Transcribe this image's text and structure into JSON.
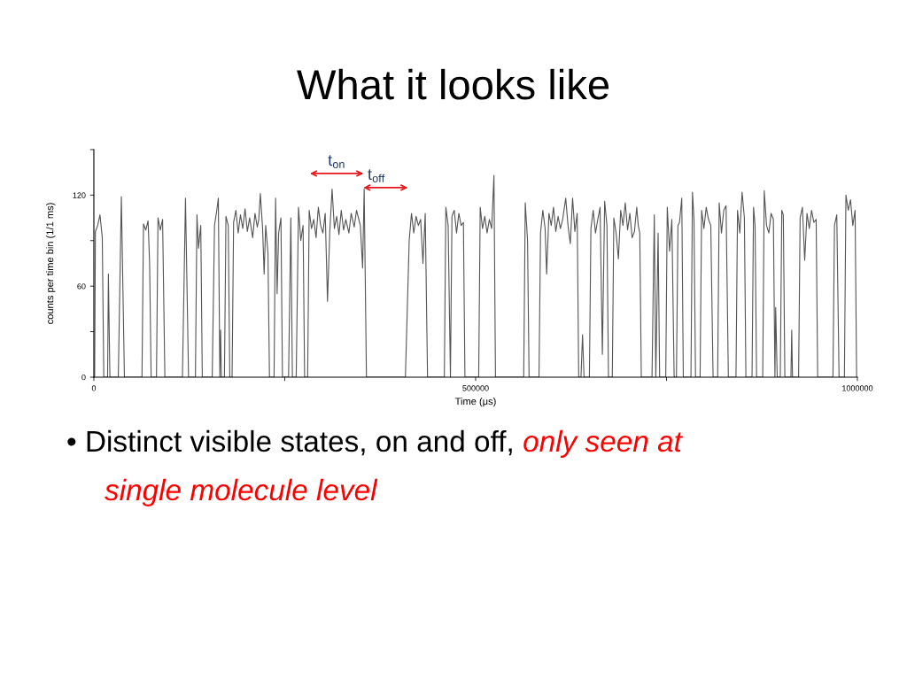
{
  "chart_data": {
    "type": "line",
    "title": "What it looks like",
    "xlabel": "Time (μs)",
    "ylabel": "counts per time bin (1/1 ms)",
    "xlim": [
      0,
      1000000
    ],
    "ylim": [
      0,
      150
    ],
    "xticks": [
      0,
      {
        "value": 250000,
        "label": null
      },
      500000,
      {
        "value": 750000,
        "label": null
      },
      1000000
    ],
    "yticks": [
      0,
      {
        "value": 30,
        "label": null
      },
      60,
      {
        "value": 90,
        "label": null
      },
      120,
      {
        "value": 150,
        "label": null
      }
    ],
    "grid": false,
    "legend": false,
    "marker": "none",
    "line_style": "solid",
    "annotations": [
      "t$_{on}$",
      "t$_{off}$",
      "• Distinct visible states, on and off,",
      "only seen at",
      "single molecule level"
    ],
    "series": [
      {
        "color": "#555555",
        "x": [
          1000,
          2000,
          5000,
          8000,
          11000,
          13000,
          18000,
          19000,
          21000,
          32000,
          36000,
          40000,
          63000,
          65000,
          68000,
          71000,
          73000,
          75000,
          82000,
          84000,
          87000,
          90000,
          93000,
          116000,
          120000,
          124000,
          133000,
          135000,
          137000,
          140000,
          142000,
          155000,
          158000,
          161000,
          163000,
          165000,
          166000,
          167000,
          171000,
          173000,
          176000,
          178000,
          181000,
          183000,
          186000,
          189000,
          192000,
          195000,
          198000,
          201000,
          204000,
          208000,
          211000,
          214000,
          216000,
          218000,
          221000,
          223000,
          225000,
          228000,
          230000,
          236000,
          238000,
          240000,
          242000,
          245000,
          247000,
          255000,
          258000,
          260000,
          265000,
          268000,
          271000,
          274000,
          276000,
          280000,
          282000,
          285000,
          288000,
          291000,
          294000,
          297000,
          300000,
          303000,
          306000,
          309000,
          312000,
          315000,
          318000,
          321000,
          324000,
          327000,
          330000,
          334000,
          337000,
          341000,
          344000,
          349000,
          352000,
          354000,
          357000,
          408000,
          413000,
          416000,
          419000,
          422000,
          425000,
          428000,
          431000,
          434000,
          437000,
          459000,
          461000,
          464000,
          467000,
          469000,
          472000,
          475000,
          478000,
          481000,
          484000,
          486000,
          504000,
          506000,
          509000,
          512000,
          515000,
          518000,
          521000,
          524000,
          526000,
          563000,
          565000,
          568000,
          570000,
          583000,
          585000,
          588000,
          591000,
          593000,
          596000,
          599000,
          602000,
          605000,
          608000,
          611000,
          614000,
          618000,
          621000,
          624000,
          627000,
          630000,
          633000,
          635000,
          638000,
          640000,
          642000,
          649000,
          651000,
          654000,
          657000,
          660000,
          663000,
          666000,
          669000,
          672000,
          674000,
          679000,
          681000,
          684000,
          687000,
          690000,
          693000,
          696000,
          699000,
          702000,
          705000,
          708000,
          711000,
          713000,
          715000,
          717000,
          731000,
          734000,
          736000,
          739000,
          741000,
          749000,
          751000,
          754000,
          757000,
          760000,
          763000,
          765000,
          767000,
          770000,
          772000,
          782000,
          784000,
          786000,
          788000,
          794000,
          796000,
          799000,
          802000,
          805000,
          808000,
          811000,
          817000,
          819000,
          822000,
          825000,
          828000,
          831000,
          841000,
          843000,
          846000,
          849000,
          852000,
          854000,
          862000,
          864000,
          866000,
          868000,
          876000,
          878000,
          881000,
          884000,
          887000,
          890000,
          892000,
          893000,
          895000,
          899000,
          901000,
          903000,
          905000,
          913000,
          914000,
          915000,
          923000,
          925000,
          928000,
          931000,
          934000,
          937000,
          940000,
          943000,
          946000,
          948000,
          968000,
          970000,
          973000,
          976000,
          983000,
          985000,
          988000,
          991000,
          994000,
          997000,
          999000
        ],
        "values": [
          0,
          96,
          100,
          107,
          92,
          0,
          0,
          68,
          0,
          0,
          119,
          0,
          0,
          101,
          97,
          103,
          75,
          0,
          0,
          105,
          97,
          104,
          0,
          0,
          118,
          0,
          0,
          107,
          85,
          100,
          0,
          0,
          100,
          110,
          118,
          0,
          31,
          0,
          0,
          106,
          100,
          0,
          0,
          102,
          110,
          95,
          107,
          98,
          111,
          96,
          105,
          92,
          108,
          99,
          104,
          121,
          98,
          68,
          100,
          82,
          0,
          0,
          118,
          55,
          95,
          105,
          0,
          0,
          105,
          0,
          0,
          112,
          90,
          100,
          0,
          0,
          110,
          98,
          104,
          92,
          112,
          100,
          95,
          108,
          50,
          96,
          124,
          98,
          106,
          94,
          110,
          97,
          104,
          95,
          108,
          99,
          110,
          100,
          72,
          124,
          0,
          0,
          90,
          108,
          95,
          106,
          100,
          104,
          75,
          108,
          0,
          0,
          112,
          100,
          0,
          106,
          110,
          95,
          108,
          100,
          102,
          0,
          0,
          112,
          98,
          106,
          95,
          104,
          98,
          133,
          0,
          0,
          115,
          90,
          0,
          0,
          95,
          110,
          98,
          68,
          108,
          100,
          112,
          96,
          106,
          98,
          104,
          118,
          100,
          88,
          118,
          96,
          108,
          0,
          0,
          28,
          0,
          0,
          98,
          110,
          95,
          104,
          112,
          15,
          116,
          100,
          0,
          0,
          105,
          95,
          78,
          110,
          100,
          115,
          97,
          108,
          92,
          96,
          112,
          100,
          95,
          0,
          0,
          107,
          0,
          95,
          0,
          0,
          112,
          83,
          104,
          0,
          0,
          100,
          102,
          118,
          0,
          0,
          122,
          104,
          0,
          0,
          110,
          98,
          112,
          104,
          100,
          0,
          0,
          115,
          95,
          110,
          113,
          0,
          0,
          110,
          95,
          122,
          105,
          0,
          0,
          112,
          100,
          0,
          0,
          123,
          100,
          95,
          108,
          104,
          0,
          46,
          0,
          0,
          110,
          107,
          0,
          0,
          31,
          0,
          0,
          105,
          112,
          77,
          108,
          98,
          110,
          102,
          104,
          0,
          0,
          100,
          107,
          0,
          0,
          120,
          110,
          117,
          100,
          110,
          0
        ]
      }
    ]
  }
}
